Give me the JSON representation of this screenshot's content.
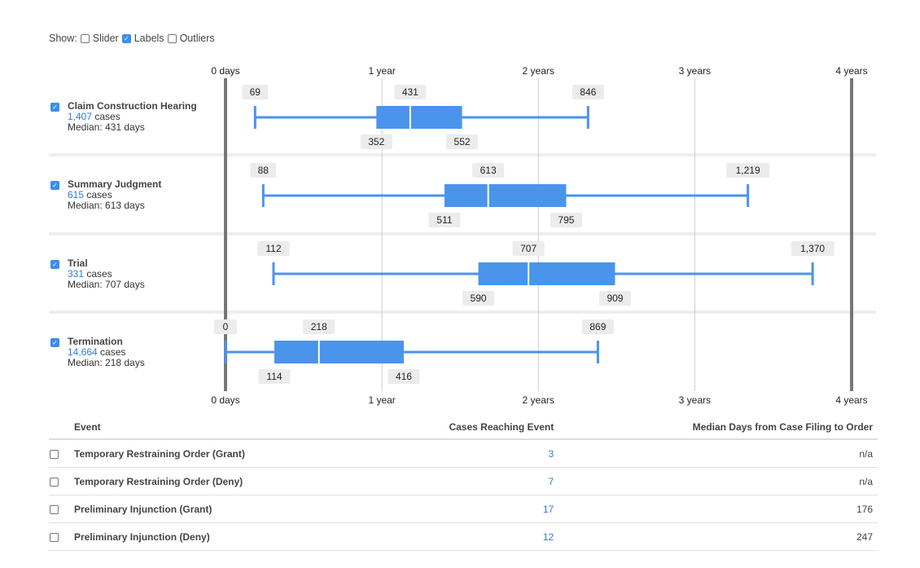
{
  "controls": {
    "show_label": "Show:",
    "options": [
      {
        "label": "Slider",
        "checked": false
      },
      {
        "label": "Labels",
        "checked": true
      },
      {
        "label": "Outliers",
        "checked": false
      }
    ]
  },
  "rows": [
    {
      "name": "Claim Construction Hearing",
      "cases": "1,407",
      "cases_suffix": "cases",
      "median_text": "Median: 431 days",
      "checked": true
    },
    {
      "name": "Summary Judgment",
      "cases": "615",
      "cases_suffix": "cases",
      "median_text": "Median: 613 days",
      "checked": true
    },
    {
      "name": "Trial",
      "cases": "331",
      "cases_suffix": "cases",
      "median_text": "Median: 707 days",
      "checked": true
    },
    {
      "name": "Termination",
      "cases": "14,664",
      "cases_suffix": "cases",
      "median_text": "Median: 218 days",
      "checked": true
    }
  ],
  "chart_data": {
    "type": "boxplot",
    "xunit": "days",
    "xlim": [
      0,
      1461
    ],
    "ticks": [
      {
        "value": 0,
        "label": "0 days"
      },
      {
        "value": 365,
        "label": "1 year"
      },
      {
        "value": 730,
        "label": "2 years"
      },
      {
        "value": 1095,
        "label": "3 years"
      },
      {
        "value": 1461,
        "label": "4 years"
      }
    ],
    "series": [
      {
        "name": "Claim Construction Hearing",
        "min": 69,
        "q1": 352,
        "median": 431,
        "q3": 552,
        "max": 846,
        "labels": [
          "69",
          "352",
          "431",
          "552",
          "846"
        ]
      },
      {
        "name": "Summary Judgment",
        "min": 88,
        "q1": 511,
        "median": 613,
        "q3": 795,
        "max": 1219,
        "labels": [
          "88",
          "511",
          "613",
          "795",
          "1,219"
        ]
      },
      {
        "name": "Trial",
        "min": 112,
        "q1": 590,
        "median": 707,
        "q3": 909,
        "max": 1370,
        "labels": [
          "112",
          "590",
          "707",
          "909",
          "1,370"
        ]
      },
      {
        "name": "Termination",
        "min": 0,
        "q1": 114,
        "median": 218,
        "q3": 416,
        "max": 869,
        "labels": [
          "0",
          "114",
          "218",
          "416",
          "869"
        ]
      }
    ],
    "colors": {
      "box": "#4a94ec",
      "axis": "#777777",
      "grid": "#cccccc",
      "label_bg": "#ececec"
    }
  },
  "table": {
    "headers": [
      "Event",
      "Cases Reaching Event",
      "Median Days from Case Filing to Order"
    ],
    "rows": [
      {
        "event": "Temporary Restraining Order (Grant)",
        "cases": "3",
        "median": "n/a"
      },
      {
        "event": "Temporary Restraining Order (Deny)",
        "cases": "7",
        "median": "n/a"
      },
      {
        "event": "Preliminary Injunction (Grant)",
        "cases": "17",
        "median": "176"
      },
      {
        "event": "Preliminary Injunction (Deny)",
        "cases": "12",
        "median": "247"
      }
    ]
  }
}
